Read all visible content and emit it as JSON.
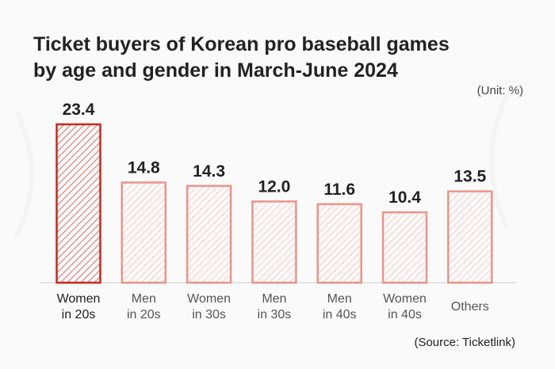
{
  "chart_data": {
    "type": "bar",
    "title_line1": "Ticket buyers of Korean pro baseball games",
    "title_line2": "by age and gender in March-June 2024",
    "unit": "(Unit: %)",
    "source": "(Source: Ticketlink)",
    "categories": [
      [
        "Women",
        "in 20s"
      ],
      [
        "Men",
        "in 20s"
      ],
      [
        "Women",
        "in 30s"
      ],
      [
        "Men",
        "in 30s"
      ],
      [
        "Men",
        "in 40s"
      ],
      [
        "Women",
        "in 40s"
      ],
      [
        "Others"
      ]
    ],
    "values": [
      23.4,
      14.8,
      14.3,
      12.0,
      11.6,
      10.4,
      13.5
    ],
    "value_labels": [
      "23.4",
      "14.8",
      "14.3",
      "12.0",
      "11.6",
      "10.4",
      "13.5"
    ],
    "highlight_index": 0,
    "ylim": [
      0,
      23.4
    ],
    "colors": {
      "highlight": "#c8281e",
      "bar": "#e8958a",
      "hatch_highlight": "#d4473c",
      "hatch": "#f0b8b0",
      "axis": "#cccccc"
    }
  }
}
